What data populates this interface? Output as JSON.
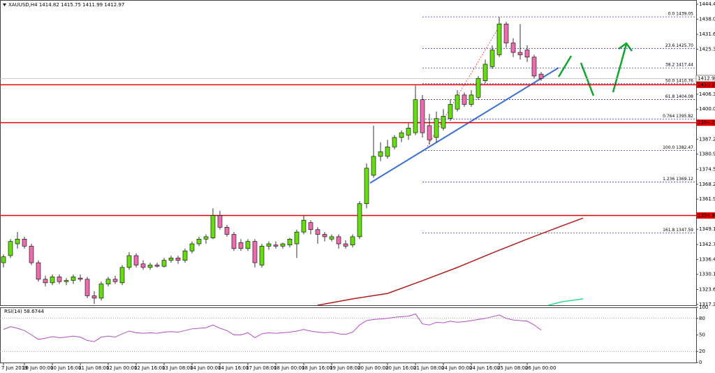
{
  "chart_data": {
    "type": "candlestick",
    "title": "XAUUSD,H4 1414.82 1415.75 1411.99 1412.97",
    "categories": [
      "7 Jun 2019",
      null,
      null,
      "10 Jun 00:00",
      null,
      null,
      null,
      "10 Jun 16:00",
      null,
      null,
      null,
      "11 Jun 08:00",
      null,
      null,
      null,
      "12 Jun 00:00",
      null,
      null,
      null,
      "12 Jun 16:00",
      null,
      null,
      null,
      "13 Jun 08:00",
      null,
      null,
      null,
      "14 Jun 00:00",
      null,
      null,
      null,
      "14 Jun 16:00",
      null,
      null,
      null,
      "17 Jun 08:00",
      null,
      null,
      null,
      "18 Jun 00:00",
      null,
      null,
      null,
      "18 Jun 16:00",
      null,
      null,
      null,
      "19 Jun 08:00",
      null,
      null,
      null,
      "20 Jun 00:00",
      null,
      null,
      null,
      "20 Jun 16:00",
      null,
      null,
      null,
      "21 Jun 08:00",
      null,
      null,
      null,
      "24 Jun 00:00",
      null,
      null,
      null,
      "24 Jun 16:00",
      null,
      null,
      null,
      "25 Jun 08:00",
      null,
      null,
      null,
      "26 Jun 00:00",
      null,
      null
    ],
    "open": [
      1335,
      1338,
      1343,
      1345,
      1342,
      1335,
      1328,
      1326.5,
      1329,
      1327,
      1327.5,
      1328.5,
      1328,
      1321,
      1320,
      1326,
      1328,
      1326.5,
      1333,
      1338,
      1334.5,
      1333,
      1334,
      1333.5,
      1336,
      1337,
      1336,
      1340,
      1343,
      1345,
      1345.5,
      1355,
      1350,
      1347,
      1343.5,
      1341,
      1344,
      1334,
      1342,
      1342.5,
      1342,
      1342.5,
      1343,
      1348,
      1352,
      1349,
      1347,
      1345,
      1346,
      1343,
      1342.5,
      1346,
      1360,
      1372,
      1380,
      1380,
      1384,
      1388,
      1389,
      1390,
      1404,
      1393,
      1388,
      1392,
      1396,
      1400,
      1406,
      1402,
      1405,
      1412,
      1418,
      1423,
      1436,
      1428,
      1424,
      1425,
      1422,
      1414.82
    ],
    "high": [
      1338.5,
      1345,
      1348,
      1346,
      1343,
      1336,
      1329.5,
      1330,
      1330,
      1328.5,
      1330,
      1330,
      1329,
      1323,
      1327,
      1329,
      1329.5,
      1334,
      1339.5,
      1339,
      1336,
      1335,
      1335,
      1337,
      1338,
      1338,
      1341,
      1344,
      1346,
      1347,
      1358,
      1357,
      1351,
      1348,
      1345,
      1345,
      1345,
      1343,
      1344,
      1344,
      1343.5,
      1345.5,
      1349,
      1355,
      1353,
      1350,
      1348,
      1347,
      1347,
      1344.5,
      1347,
      1361,
      1377,
      1393,
      1386,
      1387,
      1389,
      1391,
      1394,
      1410,
      1406,
      1398,
      1399,
      1400,
      1404,
      1408,
      1407,
      1408,
      1414,
      1421,
      1427,
      1439.05,
      1437,
      1430,
      1436,
      1427,
      1423,
      1415.75
    ],
    "low": [
      1333,
      1337,
      1341,
      1341,
      1334,
      1327,
      1325,
      1325.5,
      1326,
      1325.5,
      1326,
      1327,
      1320,
      1317.5,
      1319,
      1325,
      1326,
      1325.5,
      1332,
      1333,
      1332,
      1332,
      1333,
      1333,
      1335,
      1334.5,
      1335,
      1339,
      1342,
      1343,
      1345,
      1349,
      1346,
      1340,
      1340,
      1340,
      1333,
      1333,
      1340.5,
      1341,
      1341,
      1341.5,
      1337,
      1347,
      1347,
      1343,
      1344,
      1344,
      1341,
      1341,
      1341.5,
      1345,
      1358,
      1371,
      1378,
      1379,
      1383,
      1386,
      1387,
      1389,
      1388,
      1385,
      1386,
      1391,
      1395,
      1399,
      1401,
      1401,
      1404,
      1411,
      1417,
      1422,
      1426,
      1422,
      1421,
      1420,
      1413,
      1411.99
    ],
    "close": [
      1337.5,
      1344,
      1345,
      1342,
      1335,
      1328,
      1326.5,
      1329,
      1327,
      1327.5,
      1329,
      1328,
      1321,
      1320,
      1326,
      1328,
      1327,
      1333,
      1338,
      1334,
      1333,
      1334,
      1333.5,
      1336,
      1337,
      1336,
      1340,
      1343,
      1345,
      1346,
      1355,
      1350,
      1347,
      1341,
      1341,
      1344,
      1335,
      1342,
      1343,
      1342,
      1343,
      1345,
      1348,
      1353,
      1349,
      1347,
      1346,
      1346,
      1343,
      1342,
      1346,
      1360,
      1375,
      1380,
      1382,
      1384,
      1388,
      1390,
      1392,
      1404,
      1390,
      1387,
      1396,
      1397,
      1402,
      1406,
      1402,
      1406,
      1413,
      1419,
      1425,
      1436,
      1428,
      1424,
      1423,
      1422,
      1414,
      1412.97
    ],
    "color_up": "#66dd11",
    "color_down": "#ec6cb0",
    "ylim": [
      1317,
      1445
    ],
    "yticks": [
      {
        "value": 1444.4,
        "label": "1444.40"
      },
      1438.05,
      1431.65,
      1425.35,
      {
        "value": 1406.3,
        "label": "1406.30"
      },
      {
        "value": 1400,
        "label": "1400.00"
      },
      1387.25,
      1380.95,
      1374.55,
      {
        "value": 1368.2,
        "label": "1368.20"
      },
      {
        "value": 1361.9,
        "label": "1361.90"
      },
      1349.15,
      {
        "value": 1342.7,
        "label": "1342.70"
      },
      {
        "value": 1336.4,
        "label": "1336.40"
      },
      {
        "value": 1330.1,
        "label": "1330.10"
      },
      1323.65,
      1317.35
    ],
    "lines": [
      {
        "color": "#b01c1c",
        "x": [
          45,
          50,
          55,
          60,
          65,
          70,
          75,
          80,
          83
        ],
        "values": [
          1317.0,
          1319.7,
          1322.0,
          1327.4,
          1333.0,
          1339.1,
          1345.0,
          1350.6,
          1353.9
        ]
      },
      {
        "color": "#22dd88",
        "x": [
          78,
          80,
          83
        ],
        "values": [
          1317.0,
          1318.5,
          1319.7
        ]
      }
    ],
    "hlines": [
      1410.29,
      1394.25,
      1354.99
    ],
    "hline_color": "#e00000",
    "price_line": 1412.97,
    "fib_color": "#3333cc",
    "fib": [
      {
        "value": 1439.05,
        "label": "0.0 1439.05"
      },
      {
        "value": 1425.7,
        "label": "23.6 1425.70"
      },
      {
        "value": 1417.44,
        "label": "38.2 1417.44"
      },
      {
        "value": 1410.76,
        "label": "50.0 1410.76"
      },
      {
        "value": 1404.08,
        "label": "61.8 1404.08"
      },
      {
        "value": 1395.82,
        "label": "0.764 1395.82"
      },
      {
        "value": 1382.47,
        "label": "100.0 1382.47"
      },
      {
        "value": 1369.12,
        "label": "1.236 1369.12"
      },
      {
        "value": 1347.59,
        "label": "161.8 1347.59"
      }
    ],
    "rsi": {
      "title": "RSI(14) 58.6744",
      "color": "#b54cc6",
      "values": [
        60,
        65,
        62,
        58,
        50,
        42,
        44,
        47,
        45,
        46,
        48,
        46,
        40,
        38,
        46,
        48,
        46,
        52,
        57,
        54,
        53,
        54,
        53,
        55,
        56,
        55,
        58,
        61,
        62,
        63,
        68,
        62,
        58,
        50,
        50,
        54,
        45,
        52,
        54,
        53,
        54,
        55,
        57,
        60,
        57,
        55,
        54,
        55,
        52,
        51,
        55,
        68,
        76,
        78,
        79,
        80,
        82,
        83,
        84,
        88,
        70,
        68,
        73,
        72,
        75,
        73,
        74,
        76,
        78,
        80,
        83,
        86,
        80,
        77,
        76,
        75,
        68,
        58.6744
      ],
      "ylim": [
        0,
        100
      ],
      "yticks": [
        100,
        80,
        50,
        20,
        0
      ],
      "levels": [
        80,
        20
      ]
    }
  }
}
